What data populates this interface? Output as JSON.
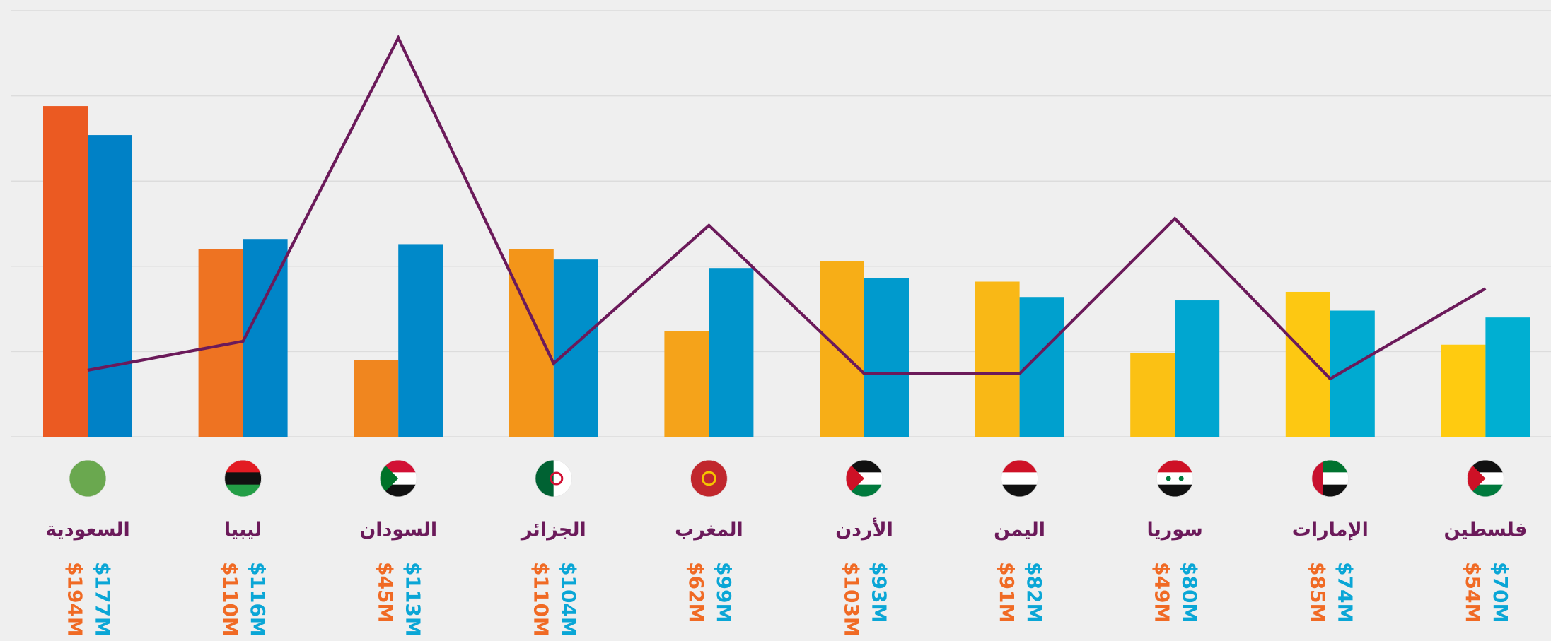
{
  "chart_data": {
    "type": "bar",
    "categories": [
      "السعودية",
      "ليبيا",
      "السودان",
      "الجزائر",
      "المغرب",
      "الأردن",
      "اليمن",
      "سوريا",
      "الإمارات",
      "فلسطين"
    ],
    "series": [
      {
        "colors": [
          "#eb5a22",
          "#ee7322",
          "#f0861f",
          "#f39519",
          "#f5a31a",
          "#f7ae17",
          "#f9b816",
          "#fbc114",
          "#fdc812",
          "#ffcb10"
        ],
        "label_color": "#f06a24",
        "values": [
          194,
          110,
          45,
          110,
          62,
          103,
          91,
          49,
          85,
          54
        ],
        "value_labels": [
          "$194M",
          "$110M",
          "$45M",
          "$110M",
          "$62M",
          "$103M",
          "$91M",
          "$49M",
          "$85M",
          "$54M"
        ]
      },
      {
        "colors": [
          "#0081c6",
          "#0085c8",
          "#0089c9",
          "#008fca",
          "#0094cb",
          "#009acd",
          "#00a0ce",
          "#00a6d0",
          "#00aad1",
          "#00afd2"
        ],
        "label_color": "#0aa6d6",
        "values": [
          177,
          116,
          113,
          104,
          99,
          93,
          82,
          80,
          74,
          70
        ],
        "value_labels": [
          "$177M",
          "$116M",
          "$113M",
          "$104M",
          "$99M",
          "$93M",
          "$82M",
          "$80M",
          "$74M",
          "$70M"
        ]
      },
      {
        "type": "line",
        "color": "#6b1a5a",
        "values": [
          39,
          56,
          234,
          43,
          124,
          37,
          37,
          128,
          34,
          87
        ]
      }
    ],
    "ylim": [
      0,
      250
    ],
    "yticks": [
      0,
      50,
      100,
      150,
      200,
      250
    ],
    "grid": true
  }
}
